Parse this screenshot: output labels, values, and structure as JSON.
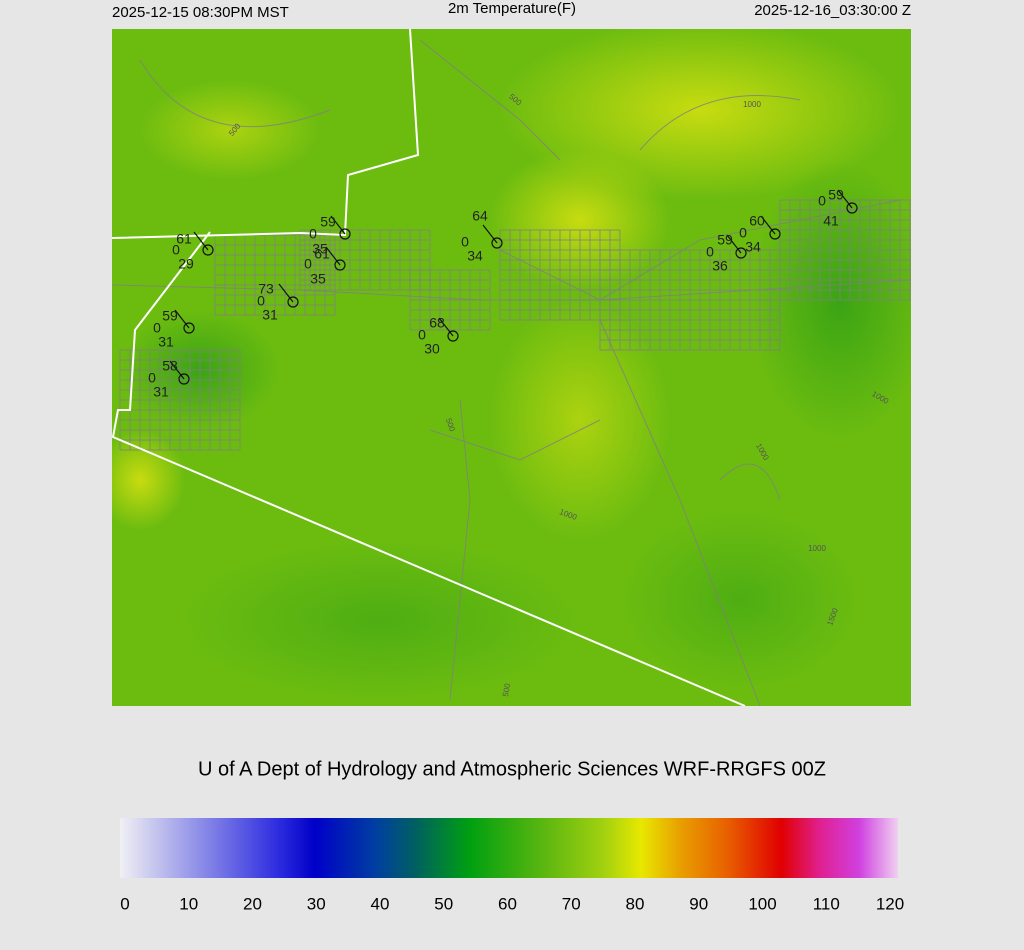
{
  "header": {
    "left": "2025-12-15 08:30PM MST",
    "title": "2m Temperature(F)",
    "right": "2025-12-16_03:30:00 Z"
  },
  "credit": "U of A Dept of Hydrology and Atmospheric Sciences WRF-RRGFS 00Z",
  "colorbar": {
    "lim": [
      0,
      120
    ],
    "ticks": [
      0,
      10,
      20,
      30,
      40,
      50,
      60,
      70,
      80,
      90,
      100,
      110,
      120
    ]
  },
  "stations": [
    {
      "temperature": 61,
      "cloud": 0,
      "dewpoint": 29
    },
    {
      "temperature": 59,
      "cloud": 0,
      "dewpoint": 35
    },
    {
      "temperature": 61,
      "cloud": 0,
      "dewpoint": 35
    },
    {
      "temperature": 73,
      "cloud": 0,
      "dewpoint": 31
    },
    {
      "temperature": 59,
      "cloud": 0,
      "dewpoint": 31
    },
    {
      "temperature": 58,
      "cloud": 0,
      "dewpoint": 31
    },
    {
      "temperature": 68,
      "cloud": 0,
      "dewpoint": 30
    },
    {
      "temperature": 64,
      "cloud": 0,
      "dewpoint": 34
    },
    {
      "temperature": 59,
      "cloud": 0,
      "dewpoint": 36
    },
    {
      "temperature": 60,
      "cloud": 0,
      "dewpoint": 34
    },
    {
      "temperature": 59,
      "cloud": 0,
      "dewpoint": 41
    }
  ],
  "contour_labels": [
    "500",
    "500",
    "1000",
    "500",
    "1000",
    "1000",
    "1000",
    "1500",
    "500",
    "1000"
  ]
}
